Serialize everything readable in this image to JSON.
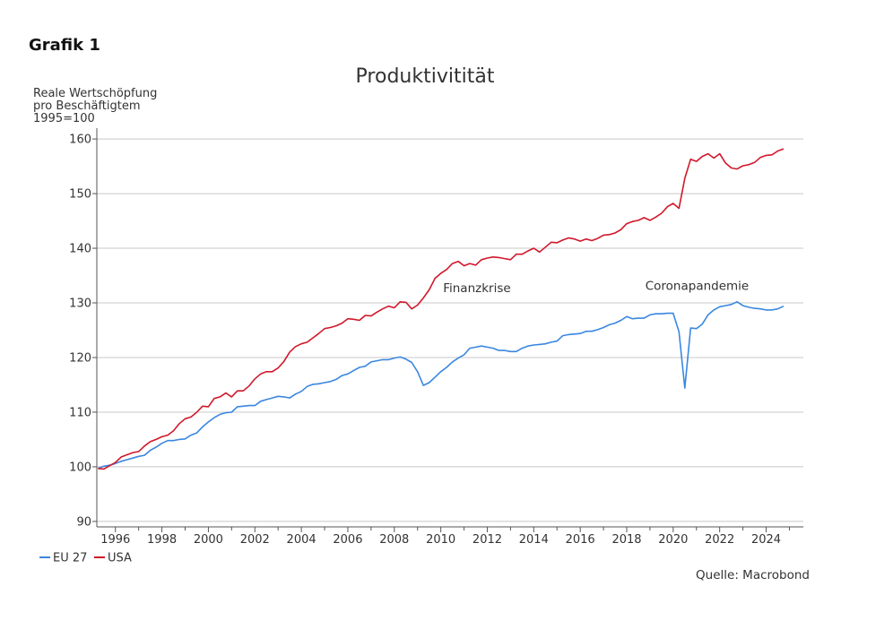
{
  "figure_label": "Grafik 1",
  "source": "Quelle: Macrobond",
  "chart_data": {
    "type": "line",
    "title": "Produktivitität",
    "ylabel": [
      "Reale Wertschöpfung",
      "pro Beschäftigtem",
      "1995=100"
    ],
    "xlabel": "",
    "xlim": [
      1995.2,
      2025.6
    ],
    "ylim": [
      89,
      161
    ],
    "yticks": [
      90,
      100,
      110,
      120,
      130,
      140,
      150,
      160
    ],
    "xticks": [
      1996,
      1998,
      2000,
      2002,
      2004,
      2006,
      2008,
      2010,
      2012,
      2014,
      2016,
      2018,
      2020,
      2022,
      2024
    ],
    "grid": "horizontal",
    "legend_position": "bottom-left",
    "annotations": [
      {
        "text": "Finanzkrise",
        "x": 2010.1,
        "y": 132
      },
      {
        "text": "Coronapandemie",
        "x": 2018.8,
        "y": 132.4
      }
    ],
    "series": [
      {
        "name": "EU 27",
        "color": "#3a87e0",
        "points": [
          [
            1995.25,
            99.7
          ],
          [
            1995.5,
            100.1
          ],
          [
            1995.75,
            100.3
          ],
          [
            1996.0,
            100.6
          ],
          [
            1996.25,
            101.0
          ],
          [
            1996.5,
            101.3
          ],
          [
            1996.75,
            101.6
          ],
          [
            1997.0,
            101.9
          ],
          [
            1997.25,
            102.1
          ],
          [
            1997.5,
            103.0
          ],
          [
            1997.75,
            103.6
          ],
          [
            1998.0,
            104.3
          ],
          [
            1998.25,
            104.8
          ],
          [
            1998.5,
            104.8
          ],
          [
            1998.75,
            105.0
          ],
          [
            1999.0,
            105.1
          ],
          [
            1999.25,
            105.8
          ],
          [
            1999.5,
            106.2
          ],
          [
            1999.75,
            107.3
          ],
          [
            2000.0,
            108.2
          ],
          [
            2000.25,
            109.0
          ],
          [
            2000.5,
            109.6
          ],
          [
            2000.75,
            109.9
          ],
          [
            2001.0,
            110.0
          ],
          [
            2001.25,
            111.0
          ],
          [
            2001.5,
            111.1
          ],
          [
            2001.75,
            111.2
          ],
          [
            2002.0,
            111.2
          ],
          [
            2002.25,
            112.0
          ],
          [
            2002.5,
            112.3
          ],
          [
            2002.75,
            112.6
          ],
          [
            2003.0,
            112.9
          ],
          [
            2003.25,
            112.8
          ],
          [
            2003.5,
            112.6
          ],
          [
            2003.75,
            113.3
          ],
          [
            2004.0,
            113.8
          ],
          [
            2004.25,
            114.7
          ],
          [
            2004.5,
            115.1
          ],
          [
            2004.75,
            115.2
          ],
          [
            2005.0,
            115.4
          ],
          [
            2005.25,
            115.6
          ],
          [
            2005.5,
            116.0
          ],
          [
            2005.75,
            116.7
          ],
          [
            2006.0,
            117.0
          ],
          [
            2006.25,
            117.6
          ],
          [
            2006.5,
            118.2
          ],
          [
            2006.75,
            118.4
          ],
          [
            2007.0,
            119.2
          ],
          [
            2007.25,
            119.4
          ],
          [
            2007.5,
            119.6
          ],
          [
            2007.75,
            119.6
          ],
          [
            2008.0,
            119.9
          ],
          [
            2008.25,
            120.1
          ],
          [
            2008.5,
            119.7
          ],
          [
            2008.75,
            119.1
          ],
          [
            2009.0,
            117.4
          ],
          [
            2009.25,
            114.9
          ],
          [
            2009.5,
            115.4
          ],
          [
            2009.75,
            116.4
          ],
          [
            2010.0,
            117.4
          ],
          [
            2010.25,
            118.2
          ],
          [
            2010.5,
            119.2
          ],
          [
            2010.75,
            119.9
          ],
          [
            2011.0,
            120.5
          ],
          [
            2011.25,
            121.7
          ],
          [
            2011.5,
            121.9
          ],
          [
            2011.75,
            122.1
          ],
          [
            2012.0,
            121.9
          ],
          [
            2012.25,
            121.7
          ],
          [
            2012.5,
            121.3
          ],
          [
            2012.75,
            121.3
          ],
          [
            2013.0,
            121.1
          ],
          [
            2013.25,
            121.1
          ],
          [
            2013.5,
            121.7
          ],
          [
            2013.75,
            122.1
          ],
          [
            2014.0,
            122.3
          ],
          [
            2014.25,
            122.4
          ],
          [
            2014.5,
            122.5
          ],
          [
            2014.75,
            122.8
          ],
          [
            2015.0,
            123.0
          ],
          [
            2015.25,
            124.0
          ],
          [
            2015.5,
            124.2
          ],
          [
            2015.75,
            124.3
          ],
          [
            2016.0,
            124.4
          ],
          [
            2016.25,
            124.8
          ],
          [
            2016.5,
            124.8
          ],
          [
            2016.75,
            125.1
          ],
          [
            2017.0,
            125.5
          ],
          [
            2017.25,
            126.0
          ],
          [
            2017.5,
            126.3
          ],
          [
            2017.75,
            126.8
          ],
          [
            2018.0,
            127.5
          ],
          [
            2018.25,
            127.1
          ],
          [
            2018.5,
            127.2
          ],
          [
            2018.75,
            127.2
          ],
          [
            2019.0,
            127.8
          ],
          [
            2019.25,
            128.0
          ],
          [
            2019.5,
            128.0
          ],
          [
            2019.75,
            128.1
          ],
          [
            2020.0,
            128.1
          ],
          [
            2020.25,
            124.7
          ],
          [
            2020.5,
            114.4
          ],
          [
            2020.75,
            125.4
          ],
          [
            2021.0,
            125.3
          ],
          [
            2021.25,
            126.1
          ],
          [
            2021.5,
            127.8
          ],
          [
            2021.75,
            128.7
          ],
          [
            2022.0,
            129.3
          ],
          [
            2022.25,
            129.5
          ],
          [
            2022.5,
            129.7
          ],
          [
            2022.75,
            130.2
          ],
          [
            2023.0,
            129.5
          ],
          [
            2023.25,
            129.2
          ],
          [
            2023.5,
            129.0
          ],
          [
            2023.75,
            128.9
          ],
          [
            2024.0,
            128.7
          ],
          [
            2024.25,
            128.7
          ],
          [
            2024.5,
            128.9
          ],
          [
            2024.75,
            129.4
          ]
        ]
      },
      {
        "name": "USA",
        "color": "#d0182b",
        "points": [
          [
            1995.25,
            99.7
          ],
          [
            1995.5,
            99.6
          ],
          [
            1995.75,
            100.2
          ],
          [
            1996.0,
            100.8
          ],
          [
            1996.25,
            101.8
          ],
          [
            1996.5,
            102.2
          ],
          [
            1996.75,
            102.6
          ],
          [
            1997.0,
            102.8
          ],
          [
            1997.25,
            103.8
          ],
          [
            1997.5,
            104.6
          ],
          [
            1997.75,
            105.0
          ],
          [
            1998.0,
            105.5
          ],
          [
            1998.25,
            105.8
          ],
          [
            1998.5,
            106.6
          ],
          [
            1998.75,
            107.9
          ],
          [
            1999.0,
            108.8
          ],
          [
            1999.25,
            109.1
          ],
          [
            1999.5,
            110.0
          ],
          [
            1999.75,
            111.1
          ],
          [
            2000.0,
            111.0
          ],
          [
            2000.25,
            112.5
          ],
          [
            2000.5,
            112.8
          ],
          [
            2000.75,
            113.5
          ],
          [
            2001.0,
            112.8
          ],
          [
            2001.25,
            113.9
          ],
          [
            2001.5,
            113.9
          ],
          [
            2001.75,
            114.8
          ],
          [
            2002.0,
            116.1
          ],
          [
            2002.25,
            117.0
          ],
          [
            2002.5,
            117.4
          ],
          [
            2002.75,
            117.4
          ],
          [
            2003.0,
            118.1
          ],
          [
            2003.25,
            119.3
          ],
          [
            2003.5,
            121.0
          ],
          [
            2003.75,
            122.0
          ],
          [
            2004.0,
            122.5
          ],
          [
            2004.25,
            122.8
          ],
          [
            2004.5,
            123.6
          ],
          [
            2004.75,
            124.4
          ],
          [
            2005.0,
            125.3
          ],
          [
            2005.25,
            125.5
          ],
          [
            2005.5,
            125.8
          ],
          [
            2005.75,
            126.3
          ],
          [
            2006.0,
            127.1
          ],
          [
            2006.25,
            127.0
          ],
          [
            2006.5,
            126.8
          ],
          [
            2006.75,
            127.7
          ],
          [
            2007.0,
            127.6
          ],
          [
            2007.25,
            128.3
          ],
          [
            2007.5,
            128.9
          ],
          [
            2007.75,
            129.4
          ],
          [
            2008.0,
            129.1
          ],
          [
            2008.25,
            130.2
          ],
          [
            2008.5,
            130.1
          ],
          [
            2008.75,
            128.9
          ],
          [
            2009.0,
            129.6
          ],
          [
            2009.25,
            130.9
          ],
          [
            2009.5,
            132.4
          ],
          [
            2009.75,
            134.5
          ],
          [
            2010.0,
            135.4
          ],
          [
            2010.25,
            136.1
          ],
          [
            2010.5,
            137.2
          ],
          [
            2010.75,
            137.6
          ],
          [
            2011.0,
            136.8
          ],
          [
            2011.25,
            137.2
          ],
          [
            2011.5,
            136.9
          ],
          [
            2011.75,
            137.9
          ],
          [
            2012.0,
            138.2
          ],
          [
            2012.25,
            138.4
          ],
          [
            2012.5,
            138.3
          ],
          [
            2012.75,
            138.1
          ],
          [
            2013.0,
            137.9
          ],
          [
            2013.25,
            138.9
          ],
          [
            2013.5,
            138.9
          ],
          [
            2013.75,
            139.5
          ],
          [
            2014.0,
            140.0
          ],
          [
            2014.25,
            139.3
          ],
          [
            2014.5,
            140.2
          ],
          [
            2014.75,
            141.1
          ],
          [
            2015.0,
            141.0
          ],
          [
            2015.25,
            141.5
          ],
          [
            2015.5,
            141.9
          ],
          [
            2015.75,
            141.7
          ],
          [
            2016.0,
            141.3
          ],
          [
            2016.25,
            141.7
          ],
          [
            2016.5,
            141.4
          ],
          [
            2016.75,
            141.8
          ],
          [
            2017.0,
            142.4
          ],
          [
            2017.25,
            142.5
          ],
          [
            2017.5,
            142.8
          ],
          [
            2017.75,
            143.4
          ],
          [
            2018.0,
            144.5
          ],
          [
            2018.25,
            144.9
          ],
          [
            2018.5,
            145.1
          ],
          [
            2018.75,
            145.6
          ],
          [
            2019.0,
            145.1
          ],
          [
            2019.25,
            145.7
          ],
          [
            2019.5,
            146.4
          ],
          [
            2019.75,
            147.6
          ],
          [
            2020.0,
            148.2
          ],
          [
            2020.25,
            147.3
          ],
          [
            2020.5,
            152.8
          ],
          [
            2020.75,
            156.3
          ],
          [
            2021.0,
            155.9
          ],
          [
            2021.25,
            156.8
          ],
          [
            2021.5,
            157.3
          ],
          [
            2021.75,
            156.5
          ],
          [
            2022.0,
            157.3
          ],
          [
            2022.25,
            155.6
          ],
          [
            2022.5,
            154.7
          ],
          [
            2022.75,
            154.5
          ],
          [
            2023.0,
            155.1
          ],
          [
            2023.25,
            155.3
          ],
          [
            2023.5,
            155.7
          ],
          [
            2023.75,
            156.6
          ],
          [
            2024.0,
            157.0
          ],
          [
            2024.25,
            157.1
          ],
          [
            2024.5,
            157.8
          ],
          [
            2024.75,
            158.2
          ]
        ]
      }
    ]
  }
}
